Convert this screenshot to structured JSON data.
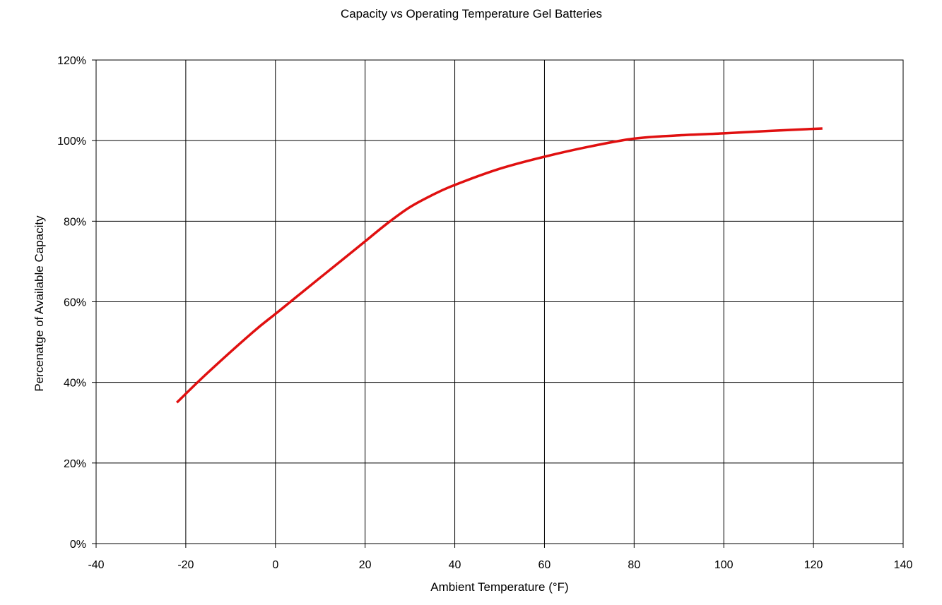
{
  "chart_data": {
    "type": "line",
    "title": "Capacity vs Operating Temperature Gel Batteries",
    "xlabel": "Ambient Temperature (°F)",
    "ylabel": "Percenatge of Available Capacity",
    "xlim": [
      -40,
      140
    ],
    "ylim": [
      0,
      1.2
    ],
    "x_ticks": [
      "-40",
      "-20",
      "0",
      "20",
      "40",
      "60",
      "80",
      "100",
      "120",
      "140"
    ],
    "y_ticks": [
      "0%",
      "20%",
      "40%",
      "60%",
      "80%",
      "100%",
      "120%"
    ],
    "grid": true,
    "legend": "none",
    "line_color": "#e01010",
    "series": [
      {
        "x": [
          -22,
          -15,
          -5,
          0,
          5,
          10,
          15,
          20,
          25,
          30,
          35,
          40,
          50,
          60,
          70,
          80,
          90,
          100,
          110,
          122
        ],
        "y": [
          0.35,
          0.425,
          0.525,
          0.57,
          0.615,
          0.66,
          0.705,
          0.75,
          0.795,
          0.835,
          0.865,
          0.89,
          0.93,
          0.96,
          0.985,
          1.005,
          1.013,
          1.018,
          1.024,
          1.03
        ]
      }
    ]
  }
}
